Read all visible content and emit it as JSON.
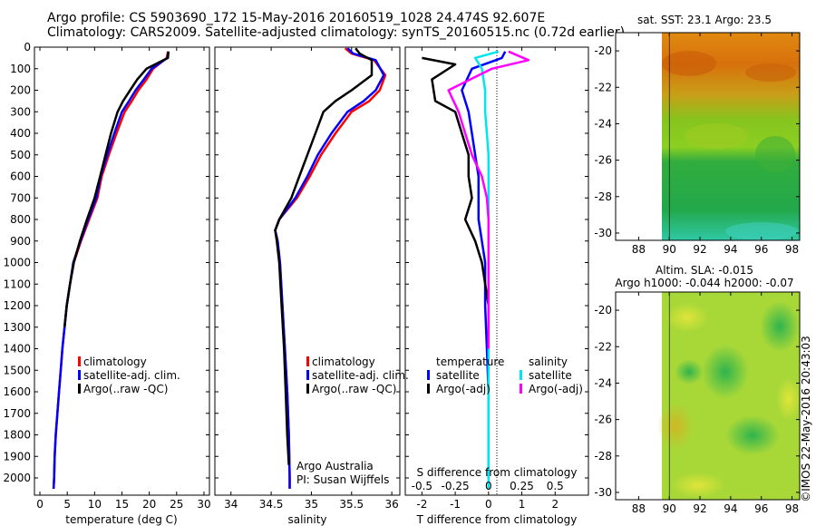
{
  "header": {
    "line1": "Argo profile: CS 5903690_172 15-May-2016 20160519_1028 24.474S 92.607E",
    "line2": "Climatology: CARS2009. Satellite-adjusted climatology: synTS_20160515.nc (0.72d earlier)"
  },
  "sst_map_title": "sat. SST: 23.1  Argo: 23.5",
  "sla_map_title1": "Altim. SLA: -0.015",
  "sla_map_title2": "Argo h1000: -0.044 h2000: -0.07",
  "credit": "©IMOS 22-May-2016 20:43:03",
  "attribution": {
    "line1": "Argo Australia",
    "line2": "PI: Susan Wijffels"
  },
  "colors": {
    "climatology": "#ff0000",
    "satellite": "#0000ff",
    "argo": "#000000",
    "sat_salinity": "#00e5ee",
    "argo_salinity": "#ff00ff"
  },
  "chart_data": [
    {
      "type": "line",
      "xlabel": "temperature (deg C)",
      "xlim": [
        -1,
        31
      ],
      "ylim": [
        0,
        2080
      ],
      "xticks": [
        0,
        5,
        10,
        15,
        20,
        25,
        30
      ],
      "yticks": [
        0,
        100,
        200,
        300,
        400,
        500,
        600,
        700,
        800,
        900,
        1000,
        1100,
        1200,
        1300,
        1400,
        1500,
        1600,
        1700,
        1800,
        1900,
        2000
      ],
      "legend": [
        "climatology",
        "satellite-adj. clim.",
        "Argo(..raw -QC)"
      ],
      "series": [
        {
          "name": "climatology",
          "color": "#ff0000",
          "points": [
            [
              23.4,
              20
            ],
            [
              23.2,
              50
            ],
            [
              20.7,
              100
            ],
            [
              19.5,
              150
            ],
            [
              18,
              200
            ],
            [
              16.8,
              250
            ],
            [
              15.5,
              300
            ],
            [
              14,
              400
            ],
            [
              12.6,
              500
            ],
            [
              11.3,
              600
            ],
            [
              10.5,
              700
            ],
            [
              9,
              800
            ],
            [
              7.5,
              900
            ],
            [
              6.2,
              1000
            ],
            [
              5.5,
              1100
            ],
            [
              4.9,
              1200
            ],
            [
              4.5,
              1300
            ],
            [
              4.1,
              1400
            ],
            [
              3.8,
              1500
            ],
            [
              3.5,
              1600
            ],
            [
              3.2,
              1700
            ],
            [
              2.9,
              1800
            ],
            [
              2.7,
              1900
            ],
            [
              2.6,
              2000
            ],
            [
              2.5,
              2050
            ]
          ]
        },
        {
          "name": "satellite-adj. clim.",
          "color": "#0000ff",
          "points": [
            [
              23.5,
              20
            ],
            [
              23.3,
              50
            ],
            [
              20.4,
              100
            ],
            [
              19,
              150
            ],
            [
              17.5,
              200
            ],
            [
              16.3,
              250
            ],
            [
              15,
              300
            ],
            [
              13.6,
              400
            ],
            [
              12.3,
              500
            ],
            [
              11.1,
              600
            ],
            [
              10.3,
              700
            ],
            [
              8.8,
              800
            ],
            [
              7.4,
              900
            ],
            [
              6.1,
              1000
            ],
            [
              5.5,
              1100
            ],
            [
              4.9,
              1200
            ],
            [
              4.5,
              1300
            ],
            [
              4.1,
              1400
            ],
            [
              3.8,
              1500
            ],
            [
              3.5,
              1600
            ],
            [
              3.2,
              1700
            ],
            [
              2.9,
              1800
            ],
            [
              2.7,
              1900
            ],
            [
              2.6,
              2000
            ],
            [
              2.5,
              2050
            ]
          ]
        },
        {
          "name": "Argo(..raw -QC)",
          "color": "#000000",
          "points": [
            [
              23.5,
              20
            ],
            [
              23.4,
              50
            ],
            [
              19.5,
              100
            ],
            [
              17.8,
              150
            ],
            [
              16.5,
              200
            ],
            [
              15.2,
              250
            ],
            [
              14.2,
              300
            ],
            [
              13,
              400
            ],
            [
              12,
              500
            ],
            [
              11,
              600
            ],
            [
              10,
              700
            ],
            [
              8.6,
              800
            ],
            [
              7.3,
              900
            ],
            [
              6.2,
              1000
            ],
            [
              5.5,
              1100
            ],
            [
              4.9,
              1200
            ],
            [
              4.5,
              1300
            ]
          ]
        }
      ]
    },
    {
      "type": "line",
      "xlabel": "salinity",
      "xlim": [
        33.8,
        36.1
      ],
      "ylim": [
        0,
        2080
      ],
      "xticks": [
        34,
        34.5,
        35,
        35.5,
        36
      ],
      "xtick_labels": [
        "34",
        "34.5",
        "35",
        "35.5",
        "36"
      ],
      "legend": [
        "climatology",
        "satellite-adj. clim.",
        "Argo(..raw -QC)"
      ],
      "series": [
        {
          "name": "climatology",
          "color": "#ff0000",
          "points": [
            [
              35.42,
              5
            ],
            [
              35.5,
              30
            ],
            [
              35.78,
              60
            ],
            [
              35.92,
              130
            ],
            [
              35.85,
              200
            ],
            [
              35.72,
              250
            ],
            [
              35.5,
              300
            ],
            [
              35.3,
              400
            ],
            [
              35.12,
              500
            ],
            [
              34.98,
              600
            ],
            [
              34.82,
              700
            ],
            [
              34.6,
              800
            ],
            [
              34.55,
              850
            ],
            [
              34.58,
              900
            ],
            [
              34.61,
              1000
            ],
            [
              34.64,
              1200
            ],
            [
              34.67,
              1400
            ],
            [
              34.7,
              1600
            ],
            [
              34.72,
              1800
            ],
            [
              34.73,
              2000
            ],
            [
              34.73,
              2050
            ]
          ]
        },
        {
          "name": "satellite-adj. clim.",
          "color": "#0000ff",
          "points": [
            [
              35.45,
              5
            ],
            [
              35.52,
              30
            ],
            [
              35.8,
              60
            ],
            [
              35.9,
              130
            ],
            [
              35.8,
              200
            ],
            [
              35.65,
              250
            ],
            [
              35.45,
              300
            ],
            [
              35.25,
              400
            ],
            [
              35.08,
              500
            ],
            [
              34.95,
              600
            ],
            [
              34.8,
              700
            ],
            [
              34.6,
              800
            ],
            [
              34.55,
              850
            ],
            [
              34.58,
              900
            ],
            [
              34.61,
              1000
            ],
            [
              34.64,
              1200
            ],
            [
              34.67,
              1400
            ],
            [
              34.7,
              1600
            ],
            [
              34.72,
              1800
            ],
            [
              34.73,
              2000
            ],
            [
              34.73,
              2050
            ]
          ]
        },
        {
          "name": "Argo(..raw -QC)",
          "color": "#000000",
          "points": [
            [
              35.55,
              5
            ],
            [
              35.6,
              30
            ],
            [
              35.75,
              60
            ],
            [
              35.75,
              130
            ],
            [
              35.5,
              200
            ],
            [
              35.3,
              250
            ],
            [
              35.15,
              300
            ],
            [
              35.05,
              400
            ],
            [
              34.95,
              500
            ],
            [
              34.85,
              600
            ],
            [
              34.75,
              700
            ],
            [
              34.6,
              800
            ],
            [
              34.55,
              850
            ],
            [
              34.57,
              900
            ],
            [
              34.6,
              1000
            ],
            [
              34.63,
              1200
            ],
            [
              34.66,
              1400
            ],
            [
              34.68,
              1600
            ],
            [
              34.7,
              1800
            ],
            [
              34.72,
              1940
            ]
          ]
        }
      ]
    },
    {
      "type": "line",
      "xlabel": "T difference from climatology",
      "xlabel_top": "S difference from climatology",
      "xlim": [
        -2.5,
        3
      ],
      "ylim": [
        0,
        2080
      ],
      "xticks": [
        -2,
        -1,
        0,
        1,
        2
      ],
      "s_ticks": [
        "-0.5",
        "-0.25",
        "0",
        "0.25",
        "0.5"
      ],
      "legend_groups": [
        {
          "heading": "temperature",
          "items": [
            "satellite",
            "Argo(-adj)"
          ]
        },
        {
          "heading": "salinity",
          "items": [
            "satellite",
            "Argo(-adj)"
          ]
        }
      ],
      "series": [
        {
          "name": "temperature satellite",
          "color": "#0000ff",
          "points": [
            [
              0.5,
              20
            ],
            [
              0.4,
              50
            ],
            [
              -0.5,
              100
            ],
            [
              -0.8,
              200
            ],
            [
              -0.6,
              300
            ],
            [
              -0.5,
              400
            ],
            [
              -0.4,
              500
            ],
            [
              -0.3,
              600
            ],
            [
              -0.3,
              700
            ],
            [
              -0.3,
              800
            ],
            [
              -0.2,
              900
            ],
            [
              -0.1,
              1000
            ],
            [
              -0.1,
              1200
            ],
            [
              -0.05,
              1400
            ],
            [
              0,
              1600
            ],
            [
              0,
              2000
            ]
          ]
        },
        {
          "name": "temperature Argo(-adj)",
          "color": "#000000",
          "points": [
            [
              -2,
              50
            ],
            [
              -1,
              80
            ],
            [
              -1.7,
              150
            ],
            [
              -1.6,
              250
            ],
            [
              -1.0,
              300
            ],
            [
              -0.8,
              400
            ],
            [
              -0.6,
              500
            ],
            [
              -0.6,
              600
            ],
            [
              -0.5,
              700
            ],
            [
              -0.7,
              800
            ],
            [
              -0.4,
              900
            ],
            [
              -0.2,
              1000
            ],
            [
              0,
              1200
            ],
            [
              0,
              1300
            ]
          ]
        },
        {
          "name": "salinity satellite",
          "color": "#00e5ee",
          "points": [
            [
              0.3,
              20
            ],
            [
              -0.4,
              50
            ],
            [
              -0.2,
              100
            ],
            [
              -0.1,
              200
            ],
            [
              -0.1,
              300
            ],
            [
              -0.05,
              400
            ],
            [
              0,
              500
            ],
            [
              0,
              700
            ],
            [
              0,
              900
            ],
            [
              0,
              1200
            ],
            [
              0,
              1600
            ],
            [
              0,
              2050
            ]
          ]
        },
        {
          "name": "salinity Argo(-adj)",
          "color": "#ff00ff",
          "points": [
            [
              0.6,
              20
            ],
            [
              1.2,
              60
            ],
            [
              0.1,
              100
            ],
            [
              -1.2,
              200
            ],
            [
              -0.9,
              300
            ],
            [
              -0.7,
              400
            ],
            [
              -0.5,
              500
            ],
            [
              -0.2,
              600
            ],
            [
              -0.05,
              700
            ],
            [
              0,
              800
            ],
            [
              0,
              900
            ],
            [
              0,
              1100
            ],
            [
              0,
              1400
            ]
          ]
        }
      ]
    },
    {
      "type": "heatmap",
      "title": "sat. SST: 23.1  Argo: 23.5",
      "xlim": [
        86.5,
        98.5
      ],
      "ylim": [
        -30.4,
        -19
      ],
      "xticks": [
        88,
        90,
        92,
        94,
        96,
        98
      ],
      "yticks": [
        -20,
        -22,
        -24,
        -26,
        -28,
        -30
      ],
      "data_x_start": 90
    },
    {
      "type": "heatmap",
      "title": "Altim. SLA: -0.015",
      "subtitle": "Argo h1000: -0.044 h2000: -0.07",
      "xlim": [
        86.5,
        98.5
      ],
      "ylim": [
        -30.4,
        -19
      ],
      "xticks": [
        88,
        90,
        92,
        94,
        96,
        98
      ],
      "yticks": [
        -20,
        -22,
        -24,
        -26,
        -28,
        -30
      ],
      "data_x_start": 90
    }
  ]
}
